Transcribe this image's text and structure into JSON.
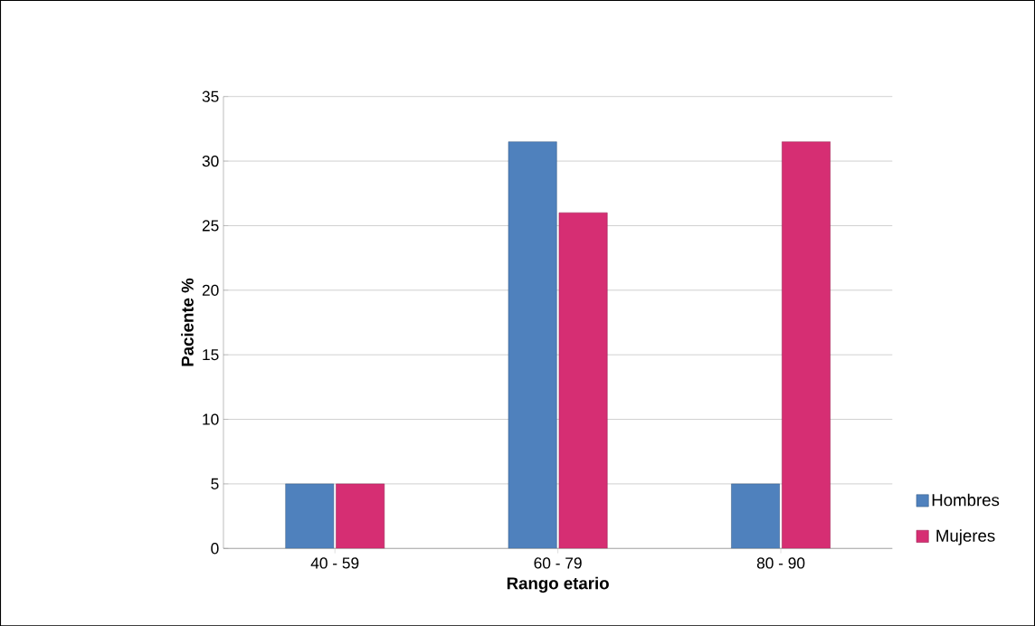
{
  "chart_data": {
    "type": "bar",
    "xlabel": "Rango etario",
    "ylabel": "Paciente %",
    "categories": [
      "40 - 59",
      "60 - 79",
      "80 - 90"
    ],
    "series": [
      {
        "name": "Hombres",
        "color": "#4f81bd",
        "values": [
          5,
          31.5,
          5
        ]
      },
      {
        "name": "Mujeres",
        "color": "#d62e73",
        "values": [
          5,
          26,
          31.5
        ]
      }
    ],
    "ylim": [
      0,
      35
    ],
    "yticks": [
      0,
      5,
      10,
      15,
      20,
      25,
      30,
      35
    ],
    "grid": "y",
    "legend": "bottom right"
  }
}
